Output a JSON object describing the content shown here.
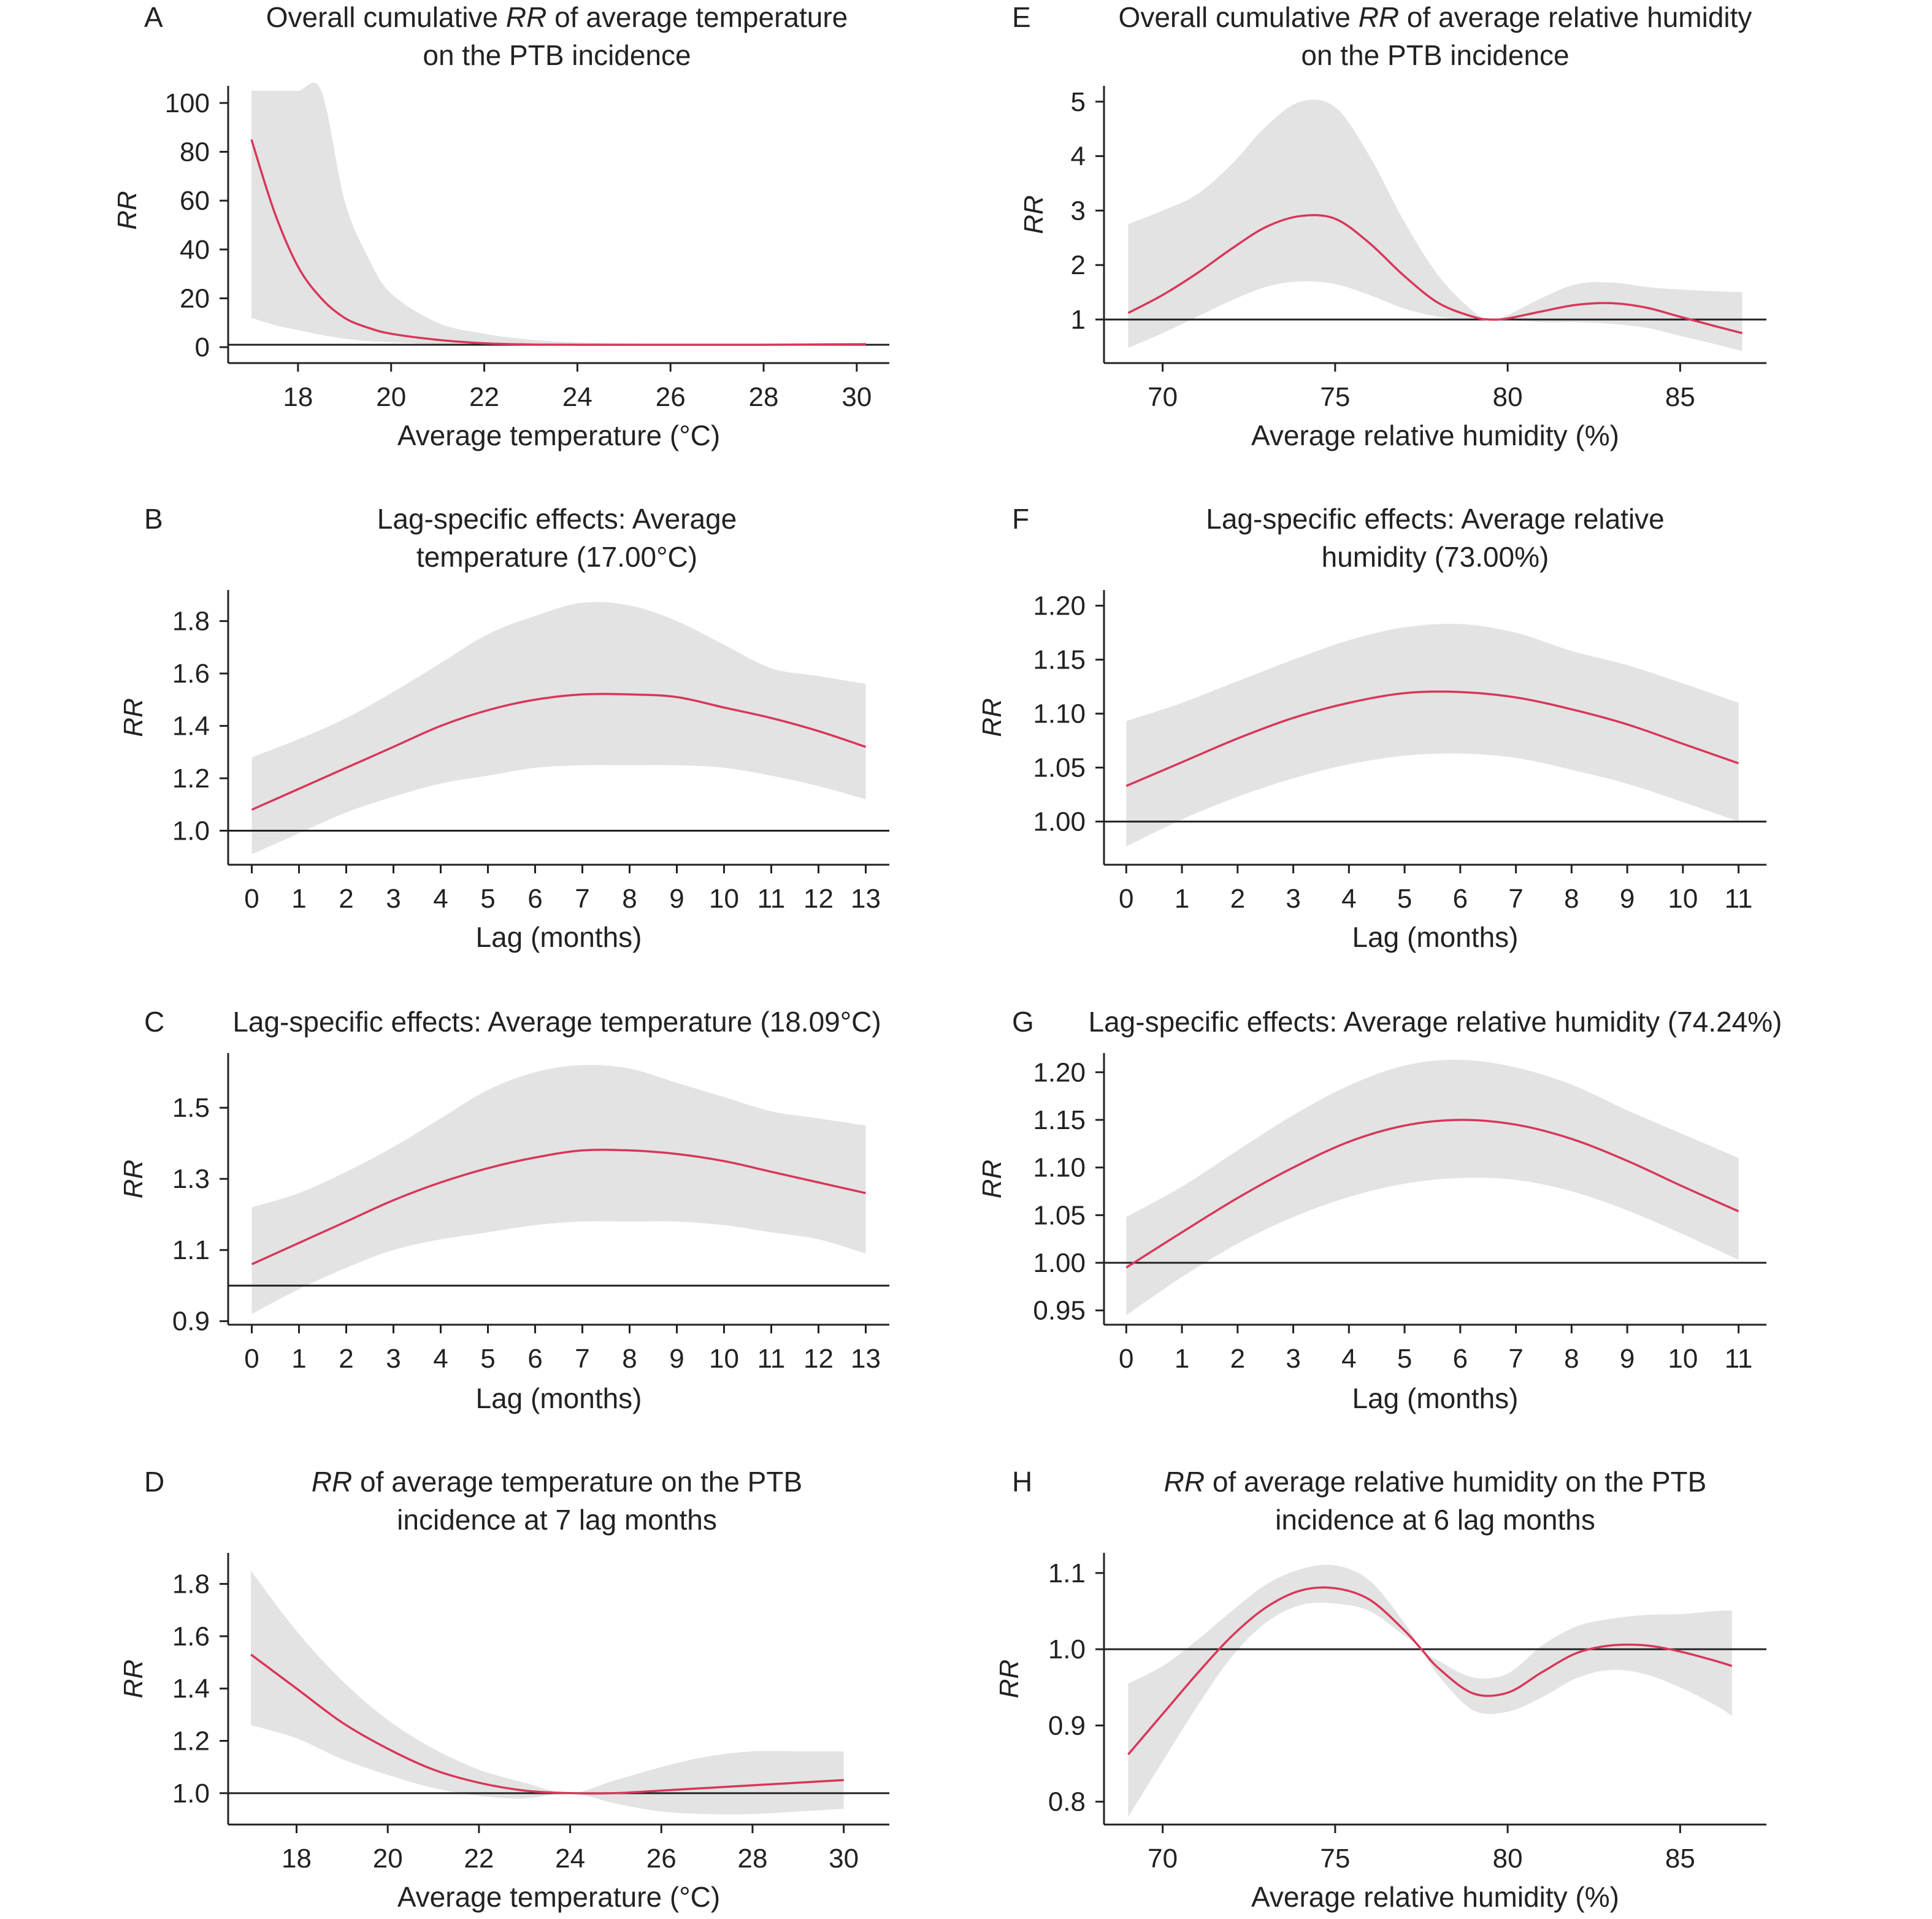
{
  "chart_data": [
    {
      "id": "A",
      "type": "area",
      "letter": "A",
      "title_lines": [
        [
          {
            "t": "Overall cumulative "
          },
          {
            "t": "RR",
            "i": true
          },
          {
            "t": " of average temperature"
          }
        ],
        [
          {
            "t": "on the PTB incidence"
          }
        ]
      ],
      "xlabel": "Average temperature (°C)",
      "ylabel": "RR",
      "xlim": [
        16.5,
        30.7
      ],
      "ylim": [
        -3,
        105
      ],
      "xticks": [
        18,
        20,
        22,
        24,
        26,
        28,
        30
      ],
      "yticks": [
        0,
        20,
        40,
        60,
        80,
        100
      ],
      "xtick_labels": [
        "18",
        "20",
        "22",
        "24",
        "26",
        "28",
        "30"
      ],
      "ytick_labels": [
        "0",
        "20",
        "40",
        "60",
        "80",
        "100"
      ],
      "reference_y": 1,
      "series": [
        {
          "x": [
            17,
            17.5,
            18,
            18.5,
            19,
            19.5,
            20,
            21,
            22,
            23,
            24,
            25,
            26,
            27,
            28,
            29,
            30.2
          ],
          "rr": [
            85,
            55,
            33,
            20,
            12,
            8,
            5.5,
            3,
            1.6,
            1.1,
            1.0,
            1.0,
            1.0,
            1.0,
            1.0,
            1.1,
            1.2
          ],
          "lower": [
            12,
            9,
            7,
            5,
            3.5,
            2.5,
            2,
            1.3,
            1.0,
            0.9,
            0.9,
            0.9,
            0.9,
            0.9,
            0.9,
            0.9,
            0.9
          ],
          "upper": [
            105,
            105,
            105,
            105,
            60,
            37,
            22,
            10,
            5.5,
            3,
            2,
            1.5,
            1.3,
            1.3,
            1.4,
            1.6,
            1.8
          ]
        }
      ]
    },
    {
      "id": "B",
      "type": "area",
      "letter": "B",
      "title_lines": [
        [
          {
            "t": "Lag-specific effects: Average"
          }
        ],
        [
          {
            "t": "temperature (17.00°C)"
          }
        ]
      ],
      "xlabel": "Lag (months)",
      "ylabel": "RR",
      "xlim": [
        -0.5,
        13.5
      ],
      "ylim": [
        0.87,
        1.9
      ],
      "xticks": [
        0,
        1,
        2,
        3,
        4,
        5,
        6,
        7,
        8,
        9,
        10,
        11,
        12,
        13
      ],
      "yticks": [
        1.0,
        1.2,
        1.4,
        1.6,
        1.8
      ],
      "xtick_labels": [
        "0",
        "1",
        "2",
        "3",
        "4",
        "5",
        "6",
        "7",
        "8",
        "9",
        "10",
        "11",
        "12",
        "13"
      ],
      "ytick_labels": [
        "1.0",
        "1.2",
        "1.4",
        "1.6",
        "1.8"
      ],
      "reference_y": 1.0,
      "series": [
        {
          "x": [
            0,
            1,
            2,
            3,
            4,
            5,
            6,
            7,
            8,
            9,
            10,
            11,
            12,
            13
          ],
          "rr": [
            1.08,
            1.16,
            1.24,
            1.32,
            1.4,
            1.46,
            1.5,
            1.52,
            1.52,
            1.51,
            1.47,
            1.43,
            1.38,
            1.32
          ],
          "lower": [
            0.91,
            0.99,
            1.07,
            1.13,
            1.18,
            1.21,
            1.24,
            1.25,
            1.25,
            1.25,
            1.24,
            1.21,
            1.17,
            1.12
          ],
          "upper": [
            1.28,
            1.35,
            1.43,
            1.53,
            1.64,
            1.75,
            1.82,
            1.87,
            1.86,
            1.8,
            1.71,
            1.62,
            1.59,
            1.56
          ]
        }
      ]
    },
    {
      "id": "C",
      "type": "area",
      "letter": "C",
      "title_lines": [
        [
          {
            "t": "Lag-specific effects: Average temperature (18.09°C)"
          }
        ]
      ],
      "xlabel": "Lag (months)",
      "ylabel": "RR",
      "xlim": [
        -0.5,
        13.5
      ],
      "ylim": [
        0.89,
        1.64
      ],
      "xticks": [
        0,
        1,
        2,
        3,
        4,
        5,
        6,
        7,
        8,
        9,
        10,
        11,
        12,
        13
      ],
      "yticks": [
        0.9,
        1.1,
        1.3,
        1.5
      ],
      "xtick_labels": [
        "0",
        "1",
        "2",
        "3",
        "4",
        "5",
        "6",
        "7",
        "8",
        "9",
        "10",
        "11",
        "12",
        "13"
      ],
      "ytick_labels": [
        "0.9",
        "1.1",
        "1.3",
        "1.5"
      ],
      "reference_y": 1.0,
      "series": [
        {
          "x": [
            0,
            1,
            2,
            3,
            4,
            5,
            6,
            7,
            8,
            9,
            10,
            11,
            12,
            13
          ],
          "rr": [
            1.06,
            1.12,
            1.18,
            1.24,
            1.29,
            1.33,
            1.36,
            1.38,
            1.38,
            1.37,
            1.35,
            1.32,
            1.29,
            1.26
          ],
          "lower": [
            0.92,
            0.99,
            1.05,
            1.1,
            1.13,
            1.15,
            1.17,
            1.18,
            1.18,
            1.18,
            1.17,
            1.15,
            1.13,
            1.09
          ],
          "upper": [
            1.22,
            1.26,
            1.32,
            1.39,
            1.47,
            1.55,
            1.6,
            1.62,
            1.61,
            1.57,
            1.53,
            1.49,
            1.47,
            1.45
          ]
        }
      ]
    },
    {
      "id": "D",
      "type": "area",
      "letter": "D",
      "title_lines": [
        [
          {
            "t": "RR",
            "i": true
          },
          {
            "t": " of average temperature on the PTB"
          }
        ],
        [
          {
            "t": "incidence at 7 lag months"
          }
        ]
      ],
      "xlabel": "Average temperature (°C)",
      "ylabel": "RR",
      "xlim": [
        16.5,
        31.0
      ],
      "ylim": [
        0.88,
        1.9
      ],
      "xticks": [
        18,
        20,
        22,
        24,
        26,
        28,
        30
      ],
      "yticks": [
        1.0,
        1.2,
        1.4,
        1.6,
        1.8
      ],
      "xtick_labels": [
        "18",
        "20",
        "22",
        "24",
        "26",
        "28",
        "30"
      ],
      "ytick_labels": [
        "1.0",
        "1.2",
        "1.4",
        "1.6",
        "1.8"
      ],
      "reference_y": 1.0,
      "series": [
        {
          "x": [
            17,
            18,
            19,
            20,
            21,
            22,
            23,
            24,
            25,
            26,
            27,
            28,
            29,
            30
          ],
          "rr": [
            1.53,
            1.4,
            1.27,
            1.17,
            1.09,
            1.04,
            1.01,
            1.0,
            1.0,
            1.01,
            1.02,
            1.03,
            1.04,
            1.05
          ],
          "lower": [
            1.26,
            1.21,
            1.13,
            1.07,
            1.02,
            0.99,
            0.98,
            1.0,
            0.96,
            0.93,
            0.92,
            0.92,
            0.93,
            0.94
          ],
          "upper": [
            1.85,
            1.62,
            1.43,
            1.28,
            1.17,
            1.09,
            1.04,
            1.0,
            1.05,
            1.1,
            1.14,
            1.16,
            1.16,
            1.16
          ]
        }
      ]
    },
    {
      "id": "E",
      "type": "area",
      "letter": "E",
      "title_lines": [
        [
          {
            "t": "Overall cumulative "
          },
          {
            "t": "RR",
            "i": true
          },
          {
            "t": " of average relative humidity"
          }
        ],
        [
          {
            "t": "on the PTB incidence"
          }
        ]
      ],
      "xlabel": "Average relative humidity (%)",
      "ylabel": "RR",
      "xlim": [
        68.3,
        87.5
      ],
      "ylim": [
        0.2,
        5.2
      ],
      "xticks": [
        70,
        75,
        80,
        85
      ],
      "yticks": [
        1,
        2,
        3,
        4,
        5
      ],
      "xtick_labels": [
        "70",
        "75",
        "80",
        "85"
      ],
      "ytick_labels": [
        "1",
        "2",
        "3",
        "4",
        "5"
      ],
      "reference_y": 1,
      "series": [
        {
          "x": [
            69,
            70,
            71,
            72,
            73,
            74,
            75,
            76,
            77,
            78,
            79,
            79.5,
            80,
            81,
            82,
            83,
            84,
            85,
            86,
            86.8
          ],
          "rr": [
            1.12,
            1.45,
            1.85,
            2.3,
            2.7,
            2.9,
            2.85,
            2.4,
            1.8,
            1.3,
            1.05,
            1.0,
            1.02,
            1.15,
            1.27,
            1.3,
            1.22,
            1.05,
            0.88,
            0.75
          ],
          "lower": [
            0.48,
            0.75,
            1.05,
            1.35,
            1.6,
            1.7,
            1.65,
            1.45,
            1.2,
            1.05,
            0.99,
            1.0,
            0.99,
            0.95,
            0.95,
            0.92,
            0.85,
            0.7,
            0.55,
            0.42
          ],
          "upper": [
            2.75,
            3.0,
            3.3,
            3.85,
            4.55,
            5.0,
            4.9,
            4.0,
            2.8,
            1.8,
            1.15,
            1.0,
            1.08,
            1.4,
            1.65,
            1.68,
            1.6,
            1.55,
            1.52,
            1.5
          ]
        }
      ]
    },
    {
      "id": "F",
      "type": "area",
      "letter": "F",
      "title_lines": [
        [
          {
            "t": "Lag-specific effects: Average relative"
          }
        ],
        [
          {
            "t": "humidity (73.00%)"
          }
        ]
      ],
      "xlabel": "Lag (months)",
      "ylabel": "RR",
      "xlim": [
        -0.4,
        11.5
      ],
      "ylim": [
        0.96,
        1.21
      ],
      "xticks": [
        0,
        1,
        2,
        3,
        4,
        5,
        6,
        7,
        8,
        9,
        10,
        11
      ],
      "yticks": [
        1.0,
        1.05,
        1.1,
        1.15,
        1.2
      ],
      "xtick_labels": [
        "0",
        "1",
        "2",
        "3",
        "4",
        "5",
        "6",
        "7",
        "8",
        "9",
        "10",
        "11"
      ],
      "ytick_labels": [
        "1.00",
        "1.05",
        "1.10",
        "1.15",
        "1.20"
      ],
      "reference_y": 1.0,
      "series": [
        {
          "x": [
            0,
            1,
            2,
            3,
            4,
            5,
            6,
            7,
            8,
            9,
            10,
            11
          ],
          "rr": [
            1.033,
            1.055,
            1.077,
            1.096,
            1.11,
            1.119,
            1.12,
            1.115,
            1.104,
            1.09,
            1.072,
            1.054
          ],
          "lower": [
            0.977,
            1.002,
            1.023,
            1.04,
            1.053,
            1.061,
            1.063,
            1.059,
            1.048,
            1.035,
            1.018,
            1.0
          ],
          "upper": [
            1.093,
            1.11,
            1.13,
            1.15,
            1.168,
            1.18,
            1.183,
            1.175,
            1.158,
            1.145,
            1.128,
            1.11
          ]
        }
      ]
    },
    {
      "id": "G",
      "type": "area",
      "letter": "G",
      "title_lines": [
        [
          {
            "t": "Lag-specific effects: Average relative humidity (74.24%)"
          }
        ]
      ],
      "xlabel": "Lag (months)",
      "ylabel": "RR",
      "xlim": [
        -0.4,
        11.5
      ],
      "ylim": [
        0.935,
        1.215
      ],
      "xticks": [
        0,
        1,
        2,
        3,
        4,
        5,
        6,
        7,
        8,
        9,
        10,
        11
      ],
      "yticks": [
        0.95,
        1.0,
        1.05,
        1.1,
        1.15,
        1.2
      ],
      "xtick_labels": [
        "0",
        "1",
        "2",
        "3",
        "4",
        "5",
        "6",
        "7",
        "8",
        "9",
        "10",
        "11"
      ],
      "ytick_labels": [
        "0.95",
        "1.00",
        "1.05",
        "1.10",
        "1.15",
        "1.20"
      ],
      "reference_y": 1.0,
      "series": [
        {
          "x": [
            0,
            1,
            2,
            3,
            4,
            5,
            6,
            7,
            8,
            9,
            10,
            11
          ],
          "rr": [
            0.995,
            1.032,
            1.068,
            1.1,
            1.127,
            1.144,
            1.15,
            1.145,
            1.13,
            1.107,
            1.08,
            1.054
          ],
          "lower": [
            0.945,
            0.985,
            1.02,
            1.048,
            1.069,
            1.083,
            1.089,
            1.087,
            1.075,
            1.055,
            1.03,
            1.003
          ],
          "upper": [
            1.048,
            1.08,
            1.118,
            1.155,
            1.186,
            1.207,
            1.213,
            1.205,
            1.187,
            1.16,
            1.135,
            1.11
          ]
        }
      ]
    },
    {
      "id": "H",
      "type": "area",
      "letter": "H",
      "title_lines": [
        [
          {
            "t": "RR",
            "i": true
          },
          {
            "t": " of average relative humidity on the PTB"
          }
        ],
        [
          {
            "t": "incidence at 6 lag months"
          }
        ]
      ],
      "xlabel": "Average relative humidity (%)",
      "ylabel": "RR",
      "xlim": [
        68.3,
        87.5
      ],
      "ylim": [
        0.77,
        1.12
      ],
      "xticks": [
        70,
        75,
        80,
        85
      ],
      "yticks": [
        0.8,
        0.9,
        1.0,
        1.1
      ],
      "xtick_labels": [
        "70",
        "75",
        "80",
        "85"
      ],
      "ytick_labels": [
        "0.8",
        "0.9",
        "1.0",
        "1.1"
      ],
      "reference_y": 1.0,
      "series": [
        {
          "x": [
            69,
            70,
            71,
            72,
            73,
            74,
            75,
            76,
            77,
            77.5,
            78,
            79,
            80,
            81,
            82,
            83,
            84,
            85,
            86,
            86.5
          ],
          "rr": [
            0.862,
            0.915,
            0.968,
            1.017,
            1.055,
            1.077,
            1.08,
            1.065,
            1.025,
            1.0,
            0.975,
            0.942,
            0.943,
            0.97,
            0.995,
            1.005,
            1.005,
            0.997,
            0.985,
            0.978
          ],
          "lower": [
            0.78,
            0.853,
            0.925,
            0.99,
            1.035,
            1.058,
            1.06,
            1.05,
            1.018,
            1.0,
            0.965,
            0.92,
            0.918,
            0.937,
            0.962,
            0.973,
            0.967,
            0.95,
            0.927,
            0.913
          ],
          "upper": [
            0.955,
            0.978,
            1.012,
            1.05,
            1.085,
            1.105,
            1.11,
            1.09,
            1.035,
            1.0,
            0.985,
            0.963,
            0.968,
            1.005,
            1.03,
            1.04,
            1.045,
            1.046,
            1.05,
            1.051
          ]
        }
      ]
    }
  ]
}
